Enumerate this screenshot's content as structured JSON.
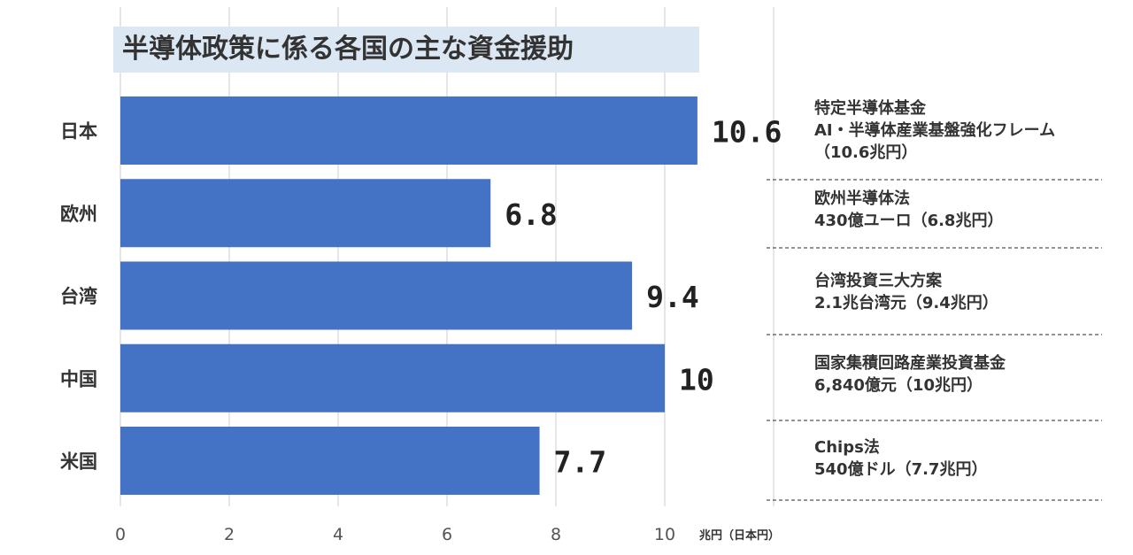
{
  "chart_data": {
    "type": "bar",
    "orientation": "horizontal",
    "title": "半導体政策に係る各国の主な資金援助",
    "categories": [
      "日本",
      "欧州",
      "台湾",
      "中国",
      "米国"
    ],
    "values": [
      10.6,
      6.8,
      9.4,
      10,
      7.7
    ],
    "value_labels": [
      "10.6",
      "6.8",
      "9.4",
      "10",
      "7.7"
    ],
    "x_ticks": [
      "0",
      "2",
      "4",
      "6",
      "8",
      "10"
    ],
    "xlim": [
      0,
      12
    ],
    "xlabel": "兆円（日本円）",
    "grid": true,
    "bar_color": "#4472c4",
    "descriptions": [
      [
        "特定半導体基金",
        "AI・半導体産業基盤強化フレーム",
        "（10.6兆円）"
      ],
      [
        "欧州半導体法",
        "430億ユーロ（6.8兆円）"
      ],
      [
        "台湾投資三大方案",
        "2.1兆台湾元（9.4兆円）"
      ],
      [
        "国家集積回路産業投資基金",
        "6,840億元（10兆円）"
      ],
      [
        "Chips法",
        "540億ドル（7.7兆円）"
      ]
    ]
  }
}
